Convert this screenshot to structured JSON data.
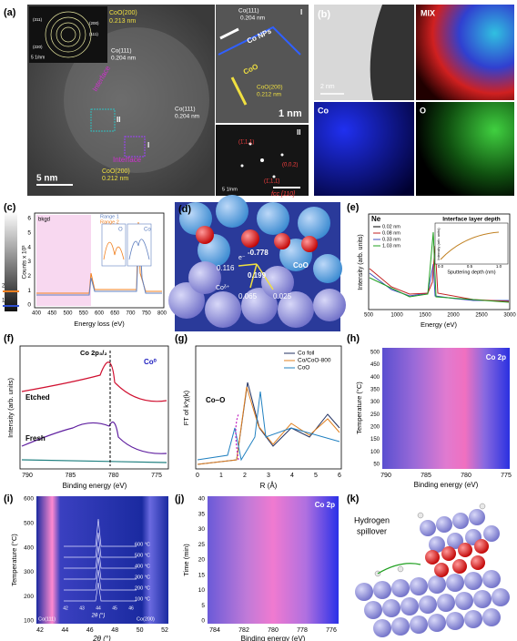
{
  "a": {
    "label": "(a)",
    "inset_rings": [
      "(311)",
      "(220)",
      "(200)",
      "(111)"
    ],
    "inset_scale": "5 1/nm",
    "inset_plane": "CoO(200)",
    "inset_d": "0.213 nm",
    "interface_labels": [
      "Interface",
      "Interface"
    ],
    "region_1": "I",
    "region_2": "II",
    "spacings": [
      {
        "plane": "Co(111)",
        "d": "0.204 nm"
      },
      {
        "plane": "Co(111)",
        "d": "0.204 nm"
      },
      {
        "plane": "CoO(200)",
        "d": "0.212 nm"
      }
    ],
    "scale": "5 nm",
    "zoom_I": {
      "label": "I",
      "plane_1": "Co(111)",
      "d_1": "0.204 nm",
      "np": "Co NPs",
      "oxide": "CoO",
      "plane_2": "CoO(200)",
      "d_2": "0.212 nm",
      "scale": "1 nm"
    },
    "zoom_II": {
      "label": "II",
      "spots": [
        "(1̄,1,1)",
        "(0,0,2)",
        "(1̄,1,1̄)"
      ],
      "scale": "5 1/nm",
      "zone": "fcc [110]"
    }
  },
  "b": {
    "label": "(b)",
    "mix": "MIX",
    "scale": "2 nm",
    "co": "Co",
    "o": "O"
  },
  "c": {
    "label": "(c)",
    "legend": [
      "bkgd",
      "Range 1",
      "Range 2"
    ],
    "ylabel": "Counts x 10³",
    "xlabel": "Energy loss (eV)",
    "xticks": [
      "400",
      "450",
      "500",
      "550",
      "600",
      "650",
      "700",
      "750",
      "800"
    ],
    "yticks": [
      "0",
      "1",
      "2",
      "3",
      "4",
      "5",
      "6"
    ],
    "inset_o": "O",
    "inset_co": "Co",
    "strip_marks": [
      "2",
      "1"
    ]
  },
  "d": {
    "label": "(d)",
    "charges": [
      "-0.778",
      "0.116",
      "0.199",
      "0.065",
      "0.025"
    ],
    "electron": "e⁻",
    "oxide": "CoO",
    "cation": "Coᵟ⁺"
  },
  "e": {
    "label": "(e)",
    "element": "Ne",
    "legend": [
      "0.02 nm",
      "0.08 nm",
      "0.33 nm",
      "1.03 nm"
    ],
    "inset_title": "Interface layer depth",
    "inset_ylabel": "Intensity (arb. units)",
    "inset_xlabel": "Sputtering depth (nm)",
    "inset_xticks": [
      "0.0",
      "0.5",
      "1.0"
    ],
    "ylabel": "Intensity (arb. units)",
    "xlabel": "Energy (eV)",
    "xticks": [
      "500",
      "1000",
      "1500",
      "2000",
      "2500",
      "3000"
    ]
  },
  "f": {
    "label": "(f)",
    "title": "Co 2p₃/₂",
    "peak": "Co⁰",
    "etched": "Etched",
    "fresh": "Fresh",
    "xticks": [
      "790",
      "785",
      "780",
      "775"
    ],
    "xlabel": "Binding energy (eV)",
    "ylabel": "Intensity (arb. units)"
  },
  "g": {
    "label": "(g)",
    "legend": [
      "Co foil",
      "Co/CoO-800",
      "CoO"
    ],
    "bond": "Co–O",
    "ylabel": "FT of k³χ(k)",
    "xlabel": "R (Å)",
    "xticks": [
      "0",
      "1",
      "2",
      "3",
      "4",
      "5",
      "6"
    ]
  },
  "h": {
    "label": "(h)",
    "title": "Co 2p",
    "yticks": [
      "500",
      "450",
      "400",
      "350",
      "300",
      "250",
      "200",
      "150",
      "100",
      "50"
    ],
    "ylabel": "Temperature (°C)",
    "xticks": [
      "790",
      "785",
      "780",
      "775"
    ],
    "xlabel": "Binding energy (eV)"
  },
  "i": {
    "label": "(i)",
    "yticks": [
      "600",
      "500",
      "400",
      "300",
      "200",
      "100"
    ],
    "ylabel": "Temperature (°C)",
    "xticks": [
      "42",
      "44",
      "46",
      "48",
      "50",
      "52"
    ],
    "xlabel": "2θ (°)",
    "inset_temps": [
      "600 °C",
      "500 °C",
      "400 °C",
      "300 °C",
      "200 °C",
      "100 °C"
    ],
    "inset_xticks": [
      "42",
      "43",
      "44",
      "45",
      "46"
    ],
    "inset_xlabel": "2θ (°)",
    "peaks": [
      "Co(111)",
      "Co(200)"
    ]
  },
  "j": {
    "label": "(j)",
    "title": "Co 2p",
    "yticks": [
      "40",
      "35",
      "30",
      "25",
      "20",
      "15",
      "10",
      "5",
      "0"
    ],
    "ylabel": "Time (min)",
    "xticks": [
      "784",
      "782",
      "780",
      "778",
      "776"
    ],
    "xlabel": "Binding energy (eV)"
  },
  "k": {
    "label": "(k)",
    "caption": [
      "Hydrogen",
      "spillover"
    ]
  }
}
